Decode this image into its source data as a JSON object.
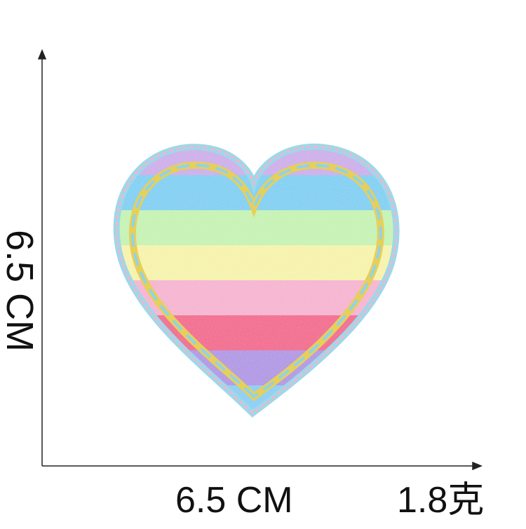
{
  "dimensions": {
    "height_label": "6.5 CM",
    "width_label": "6.5 CM",
    "weight_label": "1.8克"
  },
  "product": {
    "type": "embroidered heart patch",
    "stripe_colors": [
      "#c6a3e6",
      "#71c8f0",
      "#bdf0a8",
      "#f5f0a0",
      "#f4a9c9",
      "#f0587e",
      "#a689e0",
      "#7cc6f2"
    ],
    "border_colors": [
      "#e6cf5a",
      "#7fd4e8",
      "#f08fb5",
      "#b9e48a"
    ]
  }
}
